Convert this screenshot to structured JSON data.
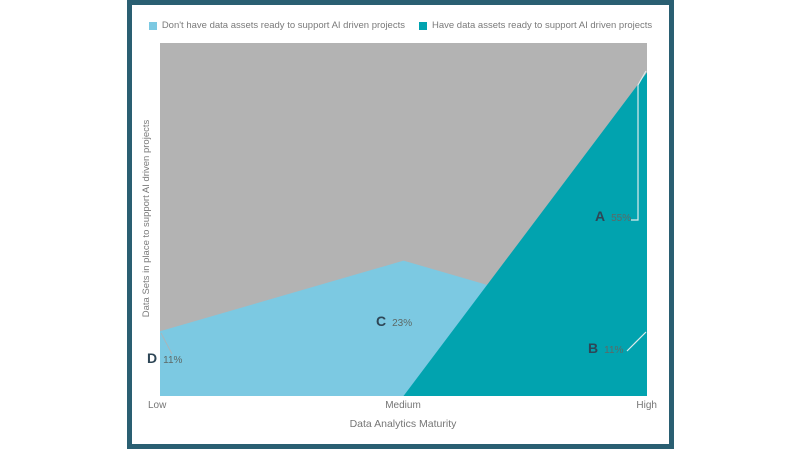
{
  "card": {
    "border_color": "#2A5F72",
    "background": "#FFFFFF"
  },
  "legend": {
    "items": [
      {
        "label": "Don't have data assets ready to support AI driven projects",
        "color": "#7CC9E2"
      },
      {
        "label": "Have data assets ready to support AI driven projects",
        "color": "#01A3AF"
      }
    ]
  },
  "chart_data": {
    "type": "area",
    "title": "",
    "xlabel": "Data Analytics Maturity",
    "ylabel": "Data Sets in place to support AI driven projects",
    "x_categories": [
      "Low",
      "Medium",
      "High"
    ],
    "plot_background": "#B3B3B3",
    "ylim": [
      0,
      60
    ],
    "grid": false,
    "legend_position": "top",
    "series": [
      {
        "name": "Don't have data assets ready to support AI driven projects",
        "color": "#7CC9E2",
        "values": [
          11,
          23,
          11
        ]
      },
      {
        "name": "Have data assets ready to support AI driven projects",
        "color": "#01A3AF",
        "values": [
          0,
          0,
          55
        ]
      }
    ],
    "annotations": {
      "a": {
        "letter": "A",
        "value": "55%",
        "x": "High"
      },
      "b": {
        "letter": "B",
        "value": "11%",
        "x": "High"
      },
      "c": {
        "letter": "C",
        "value": "23%",
        "x": "Medium"
      },
      "d": {
        "letter": "D",
        "value": "11%",
        "x": "Low"
      }
    }
  }
}
